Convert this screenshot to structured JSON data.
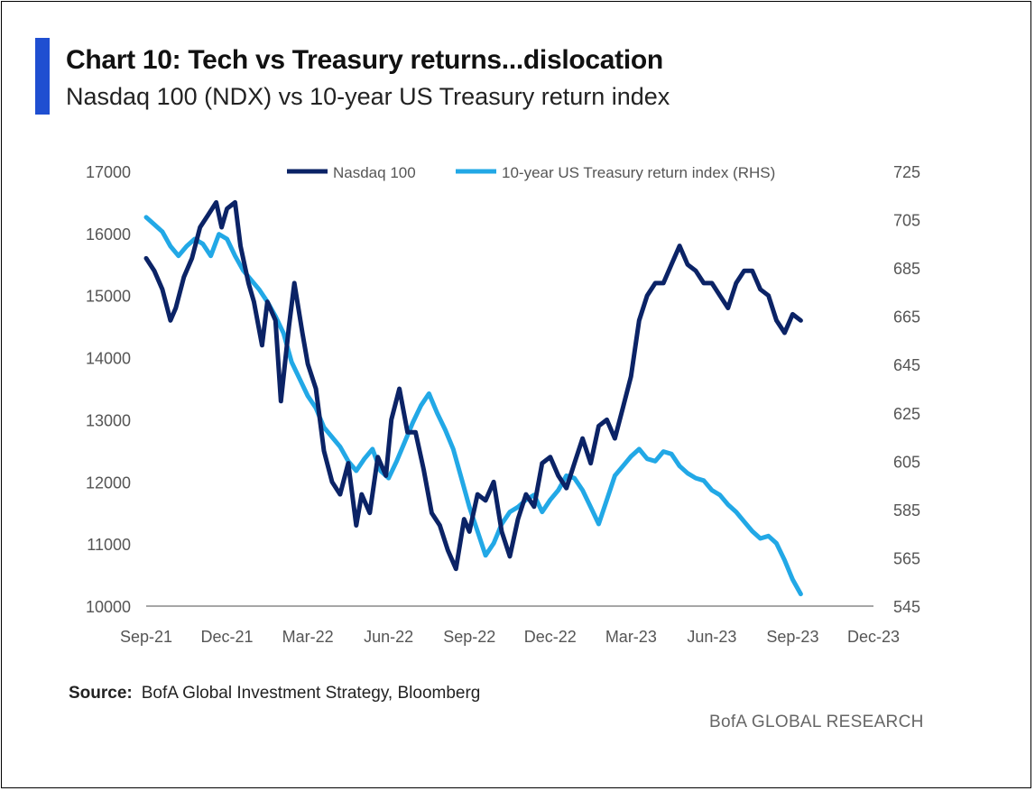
{
  "colors": {
    "accent": "#1f4fd1",
    "nasdaq": "#0b2366",
    "treasury": "#22a8e6",
    "axis": "#a6a6a6"
  },
  "header": {
    "title": "Chart 10: Tech vs Treasury returns...dislocation",
    "subtitle": "Nasdaq 100 (NDX) vs 10-year US Treasury return index"
  },
  "footer": {
    "source_label": "Source:",
    "source_text": "BofA Global Investment Strategy, Bloomberg",
    "brand": "BofA GLOBAL RESEARCH"
  },
  "chart_data": {
    "type": "line",
    "title": "Chart 10: Tech vs Treasury returns...dislocation",
    "subtitle": "Nasdaq 100 (NDX) vs 10-year US Treasury return index",
    "x_tick_labels": [
      "Sep-21",
      "Dec-21",
      "Mar-22",
      "Jun-22",
      "Sep-22",
      "Dec-22",
      "Mar-23",
      "Jun-23",
      "Sep-23",
      "Dec-23"
    ],
    "y_left": {
      "ylim": [
        10000,
        17000
      ],
      "ticks": [
        "10000",
        "11000",
        "12000",
        "13000",
        "14000",
        "15000",
        "16000",
        "17000"
      ]
    },
    "y_right": {
      "ylim": [
        545,
        725
      ],
      "ticks": [
        "545",
        "565",
        "585",
        "605",
        "625",
        "645",
        "665",
        "685",
        "705",
        "725"
      ]
    },
    "grid": false,
    "legend": "top",
    "x_units": "months from Sep-21 (0 = Sep-21, 27 = Dec-23)",
    "series": [
      {
        "name": "Nasdaq 100",
        "axis": "left",
        "x": [
          0,
          0.3,
          0.6,
          0.9,
          1.1,
          1.4,
          1.7,
          2.0,
          2.3,
          2.6,
          2.8,
          3.0,
          3.3,
          3.5,
          3.8,
          4.0,
          4.3,
          4.5,
          4.8,
          5.0,
          5.3,
          5.5,
          5.8,
          6.0,
          6.3,
          6.6,
          6.9,
          7.2,
          7.5,
          7.8,
          8.0,
          8.3,
          8.6,
          8.9,
          9.1,
          9.4,
          9.7,
          10.0,
          10.3,
          10.6,
          10.9,
          11.2,
          11.5,
          11.8,
          12.0,
          12.3,
          12.6,
          12.9,
          13.2,
          13.5,
          13.8,
          14.1,
          14.4,
          14.7,
          15.0,
          15.3,
          15.6,
          15.9,
          16.2,
          16.5,
          16.8,
          17.1,
          17.4,
          17.7,
          18.0,
          18.3,
          18.6,
          18.9,
          19.2,
          19.5,
          19.8,
          20.1,
          20.4,
          20.7,
          21.0,
          21.3,
          21.6,
          21.9,
          22.2,
          22.5,
          22.8,
          23.1,
          23.4,
          23.7,
          24.0,
          24.3
        ],
        "values": [
          15600,
          15400,
          15100,
          14600,
          14800,
          15300,
          15600,
          16100,
          16300,
          16500,
          16100,
          16400,
          16500,
          15800,
          15200,
          14900,
          14200,
          14900,
          14600,
          13300,
          14500,
          15200,
          14400,
          13900,
          13500,
          12500,
          12000,
          11800,
          12300,
          11300,
          11800,
          11500,
          12400,
          12100,
          13000,
          13500,
          12800,
          12800,
          12200,
          11500,
          11300,
          10900,
          10600,
          11400,
          11200,
          11800,
          11700,
          12000,
          11200,
          10800,
          11400,
          11800,
          11600,
          12300,
          12400,
          12100,
          11900,
          12300,
          12700,
          12300,
          12900,
          13000,
          12700,
          13200,
          13700,
          14600,
          15000,
          15200,
          15200,
          15500,
          15800,
          15500,
          15400,
          15200,
          15200,
          15000,
          14800,
          15200,
          15400,
          15400,
          15100,
          15000,
          14600,
          14400,
          14700,
          14600
        ]
      },
      {
        "name": "10-year US Treasury return index (RHS)",
        "axis": "right",
        "x": [
          0,
          0.3,
          0.6,
          0.9,
          1.2,
          1.5,
          1.8,
          2.1,
          2.4,
          2.7,
          3.0,
          3.3,
          3.6,
          3.9,
          4.2,
          4.5,
          4.8,
          5.1,
          5.4,
          5.7,
          6.0,
          6.3,
          6.6,
          6.9,
          7.2,
          7.5,
          7.8,
          8.1,
          8.4,
          8.7,
          9.0,
          9.3,
          9.6,
          9.9,
          10.2,
          10.5,
          10.8,
          11.1,
          11.4,
          11.7,
          12.0,
          12.3,
          12.6,
          12.9,
          13.2,
          13.5,
          13.8,
          14.1,
          14.4,
          14.7,
          15.0,
          15.3,
          15.6,
          15.9,
          16.2,
          16.5,
          16.8,
          17.1,
          17.4,
          17.7,
          18.0,
          18.3,
          18.6,
          18.9,
          19.2,
          19.5,
          19.8,
          20.1,
          20.4,
          20.7,
          21.0,
          21.3,
          21.6,
          21.9,
          22.2,
          22.5,
          22.8,
          23.1,
          23.4,
          23.7,
          24.0,
          24.3
        ],
        "values": [
          706,
          703,
          700,
          694,
          690,
          694,
          697,
          695,
          690,
          699,
          697,
          690,
          684,
          680,
          676,
          671,
          665,
          658,
          646,
          639,
          632,
          627,
          619,
          615,
          611,
          605,
          601,
          606,
          610,
          601,
          598,
          605,
          613,
          621,
          628,
          633,
          625,
          618,
          610,
          598,
          586,
          576,
          566,
          571,
          579,
          584,
          586,
          589,
          591,
          584,
          589,
          593,
          599,
          598,
          593,
          586,
          579,
          589,
          599,
          603,
          607,
          610,
          606,
          605,
          609,
          608,
          603,
          600,
          598,
          597,
          593,
          591,
          587,
          584,
          580,
          576,
          573,
          574,
          571,
          564,
          556,
          550
        ]
      }
    ]
  }
}
